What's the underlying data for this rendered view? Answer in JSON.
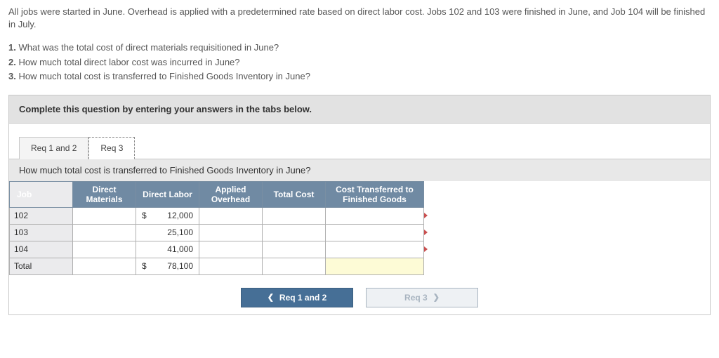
{
  "intro": "All jobs were started in June. Overhead is applied with a predetermined rate based on direct labor cost. Jobs 102 and 103 were finished in June, and Job 104 will be finished in July.",
  "questions": [
    {
      "num": "1.",
      "text": "What was the total cost of direct materials requisitioned in June?"
    },
    {
      "num": "2.",
      "text": "How much total direct labor cost was incurred in June?"
    },
    {
      "num": "3.",
      "text": "How much total cost is transferred to Finished Goods Inventory in June?"
    }
  ],
  "instruction": "Complete this question by entering your answers in the tabs below.",
  "tabs": {
    "t1": "Req 1 and 2",
    "t2": "Req 3"
  },
  "subq": "How much total cost is transferred to Finished Goods Inventory in June?",
  "columns": {
    "job": "Job",
    "dm": "Direct Materials",
    "dl": "Direct Labor",
    "ao": "Applied Overhead",
    "tc": "Total Cost",
    "fg": "Cost Transferred to Finished Goods"
  },
  "rows": [
    {
      "job": "102",
      "dl_cur": "$",
      "dl_val": "12,000"
    },
    {
      "job": "103",
      "dl_cur": "",
      "dl_val": "25,100"
    },
    {
      "job": "104",
      "dl_cur": "",
      "dl_val": "41,000"
    },
    {
      "job": "Total",
      "dl_cur": "$",
      "dl_val": "78,100"
    }
  ],
  "nav": {
    "prev": "Req 1 and 2",
    "next": "Req 3"
  },
  "colors": {
    "header_bg": "#708aa3",
    "row_label_bg": "#ebebed",
    "highlight_bg": "#fdfbd6",
    "prev_btn_bg": "#466f96",
    "marker_color": "#c94f4f"
  }
}
